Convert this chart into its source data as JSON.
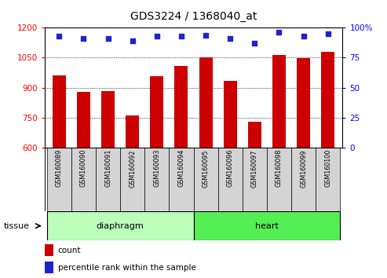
{
  "title": "GDS3224 / 1368040_at",
  "samples": [
    "GSM160089",
    "GSM160090",
    "GSM160091",
    "GSM160092",
    "GSM160093",
    "GSM160094",
    "GSM160095",
    "GSM160096",
    "GSM160097",
    "GSM160098",
    "GSM160099",
    "GSM160100"
  ],
  "counts": [
    960,
    880,
    882,
    762,
    958,
    1010,
    1050,
    935,
    728,
    1065,
    1048,
    1080
  ],
  "percentiles": [
    93,
    91,
    91,
    89,
    93,
    93,
    94,
    91,
    87,
    96,
    93,
    95
  ],
  "ylim_left": [
    600,
    1200
  ],
  "ylim_right": [
    0,
    100
  ],
  "yticks_left": [
    600,
    750,
    900,
    1050,
    1200
  ],
  "yticks_right": [
    0,
    25,
    50,
    75,
    100
  ],
  "bar_color": "#cc0000",
  "dot_color": "#2222cc",
  "groups": [
    {
      "label": "diaphragm",
      "start": 0,
      "end": 5,
      "color": "#bbffbb"
    },
    {
      "label": "heart",
      "start": 6,
      "end": 11,
      "color": "#55ee55"
    }
  ],
  "tissue_label": "tissue",
  "legend_count_label": "count",
  "legend_pct_label": "percentile rank within the sample",
  "grid_yticks": [
    750,
    900,
    1050
  ],
  "bar_bottom": 600
}
